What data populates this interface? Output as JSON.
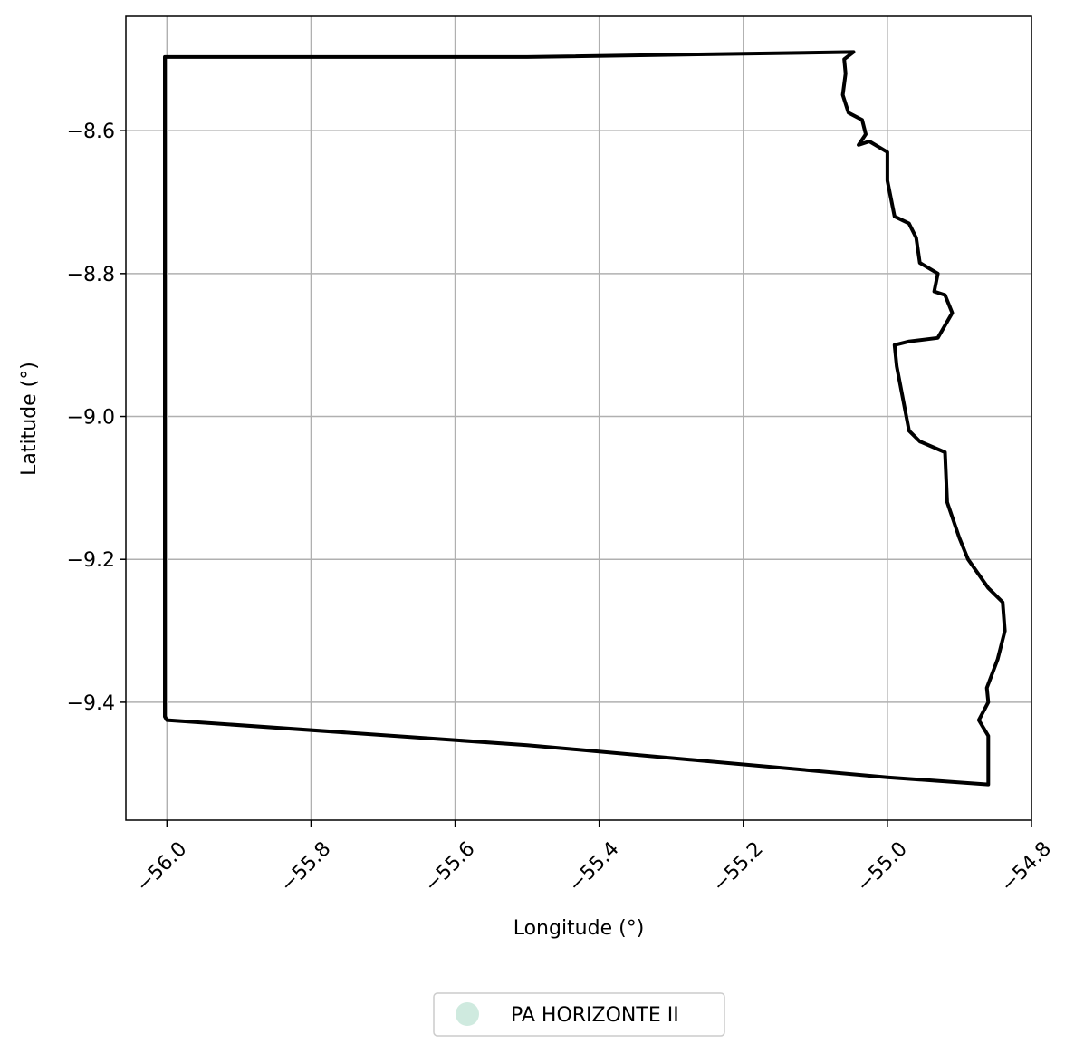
{
  "chart_data": {
    "type": "map",
    "xlabel": "Longitude (°)",
    "ylabel": "Latitude (°)",
    "xlim": [
      -56.057,
      -54.8
    ],
    "ylim": [
      -9.565,
      -8.44
    ],
    "xticks": [
      -56.0,
      -55.8,
      -55.6,
      -55.4,
      -55.2,
      -55.0,
      -54.8
    ],
    "xtick_labels": [
      "−56.0",
      "−55.8",
      "−55.6",
      "−55.4",
      "−55.2",
      "−55.0",
      "−54.8"
    ],
    "yticks": [
      -8.6,
      -8.8,
      -9.0,
      -9.2,
      -9.4
    ],
    "ytick_labels": [
      "−8.6",
      "−8.8",
      "−9.0",
      "−9.2",
      "−9.4"
    ],
    "grid": true,
    "legend": {
      "placement": "bottom-center",
      "entries": [
        {
          "label": "PA HORIZONTE II",
          "marker": "circle",
          "color": "#cfeadf"
        }
      ]
    },
    "series": [
      {
        "name": "PA HORIZONTE II",
        "kind": "boundary",
        "color": "#000000",
        "points": [
          [
            -56.0,
            -8.497
          ],
          [
            -55.5,
            -8.497
          ],
          [
            -55.047,
            -8.49
          ],
          [
            -55.06,
            -8.5
          ],
          [
            -55.058,
            -8.52
          ],
          [
            -55.062,
            -8.55
          ],
          [
            -55.054,
            -8.575
          ],
          [
            -55.035,
            -8.585
          ],
          [
            -55.03,
            -8.605
          ],
          [
            -55.04,
            -8.62
          ],
          [
            -55.025,
            -8.615
          ],
          [
            -55.0,
            -8.63
          ],
          [
            -55.0,
            -8.67
          ],
          [
            -54.99,
            -8.72
          ],
          [
            -54.97,
            -8.73
          ],
          [
            -54.96,
            -8.75
          ],
          [
            -54.955,
            -8.785
          ],
          [
            -54.93,
            -8.8
          ],
          [
            -54.935,
            -8.825
          ],
          [
            -54.92,
            -8.83
          ],
          [
            -54.91,
            -8.855
          ],
          [
            -54.93,
            -8.89
          ],
          [
            -54.97,
            -8.895
          ],
          [
            -54.99,
            -8.9
          ],
          [
            -54.987,
            -8.93
          ],
          [
            -54.97,
            -9.02
          ],
          [
            -54.955,
            -9.035
          ],
          [
            -54.92,
            -9.05
          ],
          [
            -54.917,
            -9.12
          ],
          [
            -54.9,
            -9.17
          ],
          [
            -54.888,
            -9.2
          ],
          [
            -54.86,
            -9.24
          ],
          [
            -54.84,
            -9.26
          ],
          [
            -54.837,
            -9.3
          ],
          [
            -54.847,
            -9.34
          ],
          [
            -54.862,
            -9.38
          ],
          [
            -54.86,
            -9.4
          ],
          [
            -54.873,
            -9.425
          ],
          [
            -54.86,
            -9.447
          ],
          [
            -54.86,
            -9.515
          ],
          [
            -55.0,
            -9.505
          ],
          [
            -55.5,
            -9.46
          ],
          [
            -56.0,
            -9.425
          ],
          [
            -56.003,
            -9.42
          ],
          [
            -56.003,
            -8.497
          ],
          [
            -56.0,
            -8.497
          ]
        ]
      }
    ]
  }
}
